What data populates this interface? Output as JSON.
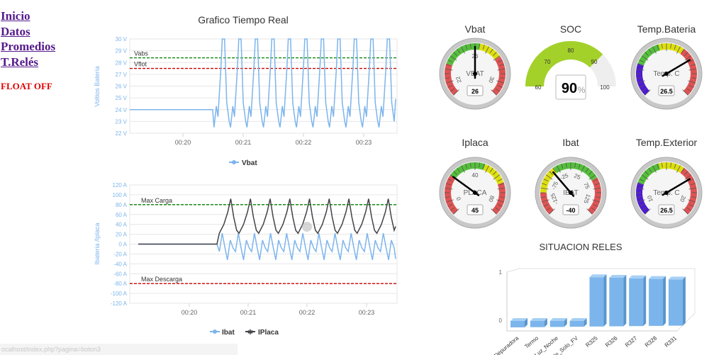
{
  "nav": [
    "Inicio",
    "Datos",
    "Promedios",
    "T.Relés"
  ],
  "status": {
    "text": "FLOAT OFF",
    "color": "#e00000"
  },
  "statusbar": "ocalhost/index.php?pagina=boton3",
  "colors": {
    "vbat": "#7cb5ec",
    "iplaca": "#434348",
    "setpoint_green": "#008000",
    "setpoint_red": "#cc0000",
    "gauge_green": "#55bf3b",
    "gauge_yellow": "#dddf0d",
    "gauge_red": "#df5353",
    "gauge_blue": "#4e1bd0",
    "soc_fill": "#a3d12a"
  },
  "vbat_chart": {
    "title": "Grafico Tiempo Real",
    "ylabel": "Voltios Bateria",
    "yticks": [
      "22 V",
      "23 V",
      "24 V",
      "25 V",
      "26 V",
      "27 V",
      "28 V",
      "29 V",
      "30 V"
    ],
    "xticks": [
      "00:20",
      "00:21",
      "00:22",
      "00:23"
    ],
    "legend": [
      "Vbat"
    ],
    "plotlines": [
      {
        "label": "Vabs",
        "value": 28.4,
        "color": "#008000"
      },
      {
        "label": "Vflot",
        "value": 27.5,
        "color": "#cc0000"
      }
    ]
  },
  "i_chart": {
    "ylabel": "Ibateria /Iplaca",
    "yticks": [
      "-120 A",
      "-100 A",
      "-80 A",
      "-60 A",
      "-40 A",
      "-20 A",
      "0 A",
      "20 A",
      "40 A",
      "60 A",
      "80 A",
      "100 A",
      "120 A"
    ],
    "xticks": [
      "00:20",
      "00:21",
      "00:22",
      "00:23"
    ],
    "legend": [
      "Ibat",
      "IPlaca"
    ],
    "plotlines": [
      {
        "label": "Max Carga",
        "value": 80,
        "color": "#008000"
      },
      {
        "label": "Max Descarga",
        "value": -80,
        "color": "#cc0000"
      }
    ]
  },
  "chart_data": [
    {
      "type": "line",
      "title": "Grafico Tiempo Real",
      "ylabel": "Voltios Bateria",
      "ylim": [
        22,
        30
      ],
      "x_range": [
        "00:19:30",
        "00:23:30"
      ],
      "series": [
        {
          "name": "Vbat",
          "shape": "flat at 24.0 V until ~00:20:35, then sawtooth oscillation between ~22.5 V and ~30 V with ~11 cycles until 00:23:30",
          "flat_value": 24.0,
          "min": 22.5,
          "max": 30.0
        }
      ]
    },
    {
      "type": "line",
      "ylabel": "Ibateria /Iplaca",
      "ylim": [
        -120,
        120
      ],
      "x_range": [
        "00:19:30",
        "00:23:30"
      ],
      "series": [
        {
          "name": "Ibat",
          "shape": "flat at 0 A until ~00:20:35, then oscillation mostly between -30 A and 20 A",
          "flat_value": 0,
          "min": -32,
          "max": 22
        },
        {
          "name": "IPlaca",
          "shape": "flat at 0 A until ~00:20:35, then oscillation between ~18 A and ~92 A with 9 peaks",
          "flat_value": 0,
          "min": 18,
          "max": 92
        }
      ]
    },
    {
      "type": "bar",
      "title": "SITUACION RELES",
      "categories": [
        "Depuradora",
        "Termo",
        "Luz_Noche",
        "le_Solo_FV",
        "R325",
        "R326",
        "R327",
        "R328",
        "R331"
      ],
      "values": [
        0,
        0,
        0,
        0,
        1,
        1,
        1,
        1,
        1
      ],
      "yticks": [
        "0",
        "1"
      ],
      "ylim": [
        0,
        1
      ]
    }
  ],
  "gauges": [
    {
      "title": "Vbat",
      "label": "VBAT",
      "value": "26",
      "ticks": [
        "22",
        "26",
        "30"
      ],
      "needle": 0.5
    },
    {
      "title": "SOC",
      "value": "90",
      "unit": "%",
      "ticks": [
        "60",
        "70",
        "80",
        "90",
        "100"
      ],
      "fill": 0.75
    },
    {
      "title": "Temp.Bateria",
      "label": "Temp. C",
      "value": "26.5",
      "ticks": [],
      "needle": 0.72
    },
    {
      "title": "Iplaca",
      "label": "PLACA",
      "value": "45",
      "ticks": [
        "0",
        "40",
        "80"
      ],
      "needle": 0.3
    },
    {
      "title": "Ibat",
      "label": "IBAT",
      "value": "-40",
      "ticks": [
        "-125",
        "-75",
        "-25",
        "25",
        "75",
        "125"
      ],
      "needle": 0.35
    },
    {
      "title": "Temp.Exterior",
      "label": "Temp. C",
      "value": "26.5",
      "ticks": [
        "10",
        "20"
      ],
      "needle": 0.72
    }
  ]
}
